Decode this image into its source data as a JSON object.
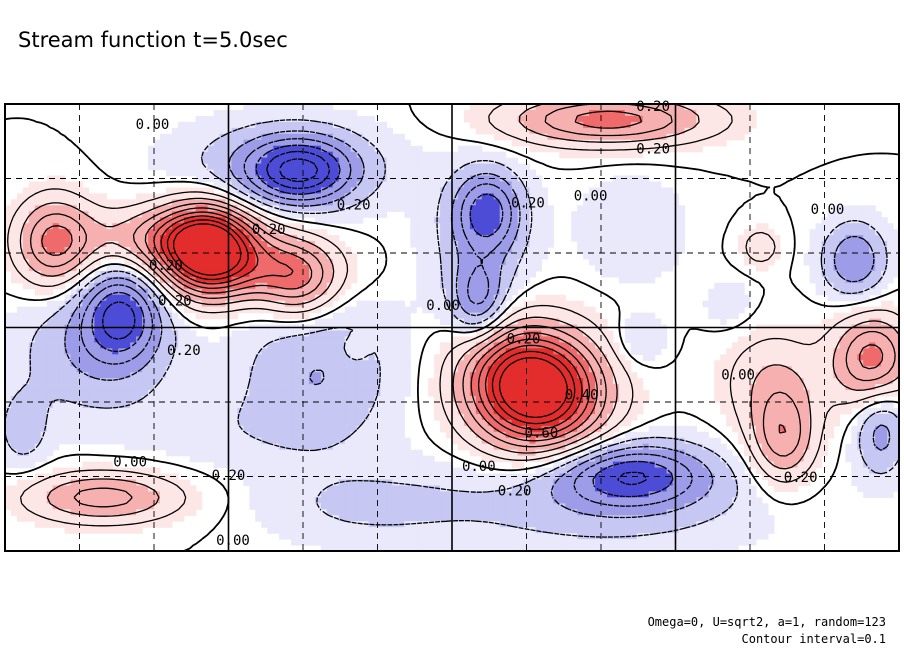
{
  "chart_data": {
    "type": "contour",
    "title": "Stream function t=5.0sec",
    "footnote_params": "Omega=0, U=sqrt2, a=1, random=123",
    "footnote_interval": "Contour interval=0.1",
    "contour_interval": 0.1,
    "colors": {
      "positive_light": "#fde6e6",
      "positive_mid": "#f7b0b0",
      "positive_strong": "#ef6a6a",
      "positive_peak": "#e32d2d",
      "negative_light": "#e9e9fb",
      "negative_mid": "#c7c7f3",
      "negative_strong": "#9c9ce8",
      "negative_peak": "#4c4cd6"
    },
    "vortices": [
      {
        "x": 0.225,
        "y": 0.675,
        "a": 0.75,
        "sx": 0.035,
        "sy": 0.07
      },
      {
        "x": 0.195,
        "y": 0.7,
        "a": 0.35,
        "sx": 0.07,
        "sy": 0.05
      },
      {
        "x": 0.28,
        "y": 0.63,
        "a": 0.3,
        "sx": 0.06,
        "sy": 0.05
      },
      {
        "x": 0.33,
        "y": 0.6,
        "a": 0.3,
        "sx": 0.03,
        "sy": 0.06
      },
      {
        "x": 0.055,
        "y": 0.69,
        "a": 0.42,
        "sx": 0.03,
        "sy": 0.07
      },
      {
        "x": 0.6,
        "y": 0.35,
        "a": 0.8,
        "sx": 0.05,
        "sy": 0.09
      },
      {
        "x": 0.57,
        "y": 0.4,
        "a": 0.35,
        "sx": 0.045,
        "sy": 0.08
      },
      {
        "x": 0.675,
        "y": 0.965,
        "a": 0.45,
        "sx": 0.08,
        "sy": 0.04
      },
      {
        "x": 0.97,
        "y": 0.43,
        "a": 0.45,
        "sx": 0.03,
        "sy": 0.07
      },
      {
        "x": 0.87,
        "y": 0.25,
        "a": 0.35,
        "sx": 0.025,
        "sy": 0.07
      },
      {
        "x": 0.86,
        "y": 0.38,
        "a": 0.2,
        "sx": 0.04,
        "sy": 0.08
      },
      {
        "x": 0.11,
        "y": 0.12,
        "a": 0.35,
        "sx": 0.06,
        "sy": 0.04
      },
      {
        "x": 0.845,
        "y": 0.68,
        "a": 0.18,
        "sx": 0.015,
        "sy": 0.03
      },
      {
        "x": 0.39,
        "y": 0.45,
        "a": 0.1,
        "sx": 0.01,
        "sy": 0.02
      },
      {
        "x": 0.33,
        "y": 0.85,
        "a": -0.48,
        "sx": 0.04,
        "sy": 0.05
      },
      {
        "x": 0.31,
        "y": 0.86,
        "a": -0.2,
        "sx": 0.08,
        "sy": 0.07
      },
      {
        "x": 0.13,
        "y": 0.53,
        "a": -0.45,
        "sx": 0.03,
        "sy": 0.07
      },
      {
        "x": 0.1,
        "y": 0.45,
        "a": -0.2,
        "sx": 0.06,
        "sy": 0.1
      },
      {
        "x": 0.54,
        "y": 0.76,
        "a": -0.38,
        "sx": 0.025,
        "sy": 0.06
      },
      {
        "x": 0.53,
        "y": 0.56,
        "a": -0.28,
        "sx": 0.02,
        "sy": 0.06
      },
      {
        "x": 0.53,
        "y": 0.68,
        "a": -0.15,
        "sx": 0.04,
        "sy": 0.12
      },
      {
        "x": 0.7,
        "y": 0.17,
        "a": -0.42,
        "sx": 0.06,
        "sy": 0.05
      },
      {
        "x": 0.66,
        "y": 0.11,
        "a": -0.15,
        "sx": 0.13,
        "sy": 0.08
      },
      {
        "x": 0.35,
        "y": 0.4,
        "a": -0.2,
        "sx": 0.06,
        "sy": 0.12
      },
      {
        "x": 0.95,
        "y": 0.65,
        "a": -0.3,
        "sx": 0.025,
        "sy": 0.06
      },
      {
        "x": 0.98,
        "y": 0.27,
        "a": -0.25,
        "sx": 0.02,
        "sy": 0.07
      },
      {
        "x": 0.7,
        "y": 0.72,
        "a": -0.1,
        "sx": 0.04,
        "sy": 0.08
      },
      {
        "x": 0.71,
        "y": 0.47,
        "a": -0.12,
        "sx": 0.02,
        "sy": 0.04
      },
      {
        "x": 0.02,
        "y": 0.27,
        "a": -0.15,
        "sx": 0.02,
        "sy": 0.06
      },
      {
        "x": 0.81,
        "y": 0.55,
        "a": -0.08,
        "sx": 0.02,
        "sy": 0.04
      },
      {
        "x": 0.4,
        "y": 0.1,
        "a": -0.1,
        "sx": 0.08,
        "sy": 0.06
      },
      {
        "x": 0.24,
        "y": 0.27,
        "a": -0.06,
        "sx": 0.08,
        "sy": 0.06
      }
    ],
    "contour_labels": [
      {
        "text": "0.00",
        "x": 0.165,
        "y": 0.955
      },
      {
        "text": "0.20",
        "x": 0.725,
        "y": 0.995
      },
      {
        "text": "0.20",
        "x": 0.725,
        "y": 0.9
      },
      {
        "text": "0.20",
        "x": 0.39,
        "y": 0.775
      },
      {
        "text": "0.20",
        "x": 0.295,
        "y": 0.72
      },
      {
        "text": "0.20",
        "x": 0.18,
        "y": 0.64
      },
      {
        "text": "0.20",
        "x": 0.19,
        "y": 0.56
      },
      {
        "text": "0.20",
        "x": 0.2,
        "y": 0.45
      },
      {
        "text": "0.20",
        "x": 0.585,
        "y": 0.78
      },
      {
        "text": "0.00",
        "x": 0.655,
        "y": 0.795
      },
      {
        "text": "0.00",
        "x": 0.92,
        "y": 0.765
      },
      {
        "text": "0.00",
        "x": 0.49,
        "y": 0.55
      },
      {
        "text": "0.20",
        "x": 0.58,
        "y": 0.475
      },
      {
        "text": "0.40",
        "x": 0.645,
        "y": 0.35
      },
      {
        "text": "0.60",
        "x": 0.6,
        "y": 0.265
      },
      {
        "text": "0.00",
        "x": 0.82,
        "y": 0.395
      },
      {
        "text": "0.20",
        "x": 0.89,
        "y": 0.165
      },
      {
        "text": "0.00",
        "x": 0.14,
        "y": 0.2
      },
      {
        "text": "0.20",
        "x": 0.25,
        "y": 0.17
      },
      {
        "text": "0.00",
        "x": 0.53,
        "y": 0.19
      },
      {
        "text": "0.20",
        "x": 0.57,
        "y": 0.135
      },
      {
        "text": "0.00",
        "x": 0.255,
        "y": 0.025
      }
    ]
  }
}
